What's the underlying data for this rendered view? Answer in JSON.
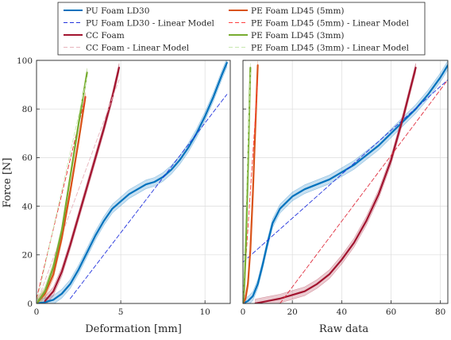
{
  "chart_data": [
    {
      "type": "line",
      "xlabel": "Deformation [mm]",
      "ylabel": "Force [N]",
      "xlim": [
        0,
        11.5
      ],
      "ylim": [
        0,
        100
      ],
      "xticks": [
        0,
        5,
        10
      ],
      "yticks": [
        0,
        20,
        40,
        60,
        80,
        100
      ],
      "grid": true,
      "series": [
        {
          "name": "PU Foam LD30",
          "color": "#0072bd",
          "style": "solid",
          "band": true,
          "x": [
            0,
            0.5,
            1,
            1.5,
            2,
            2.5,
            3,
            3.5,
            4,
            4.5,
            5,
            5.5,
            6,
            6.5,
            7,
            7.5,
            8,
            8.5,
            9,
            9.5,
            10,
            10.5,
            11,
            11.3
          ],
          "y": [
            0,
            0.5,
            1.5,
            4,
            8,
            14,
            21,
            28,
            34,
            39,
            42,
            45,
            47,
            49,
            50,
            52,
            55,
            59,
            64,
            70,
            77,
            85,
            94,
            99
          ]
        },
        {
          "name": "PU Foam LD30 - Linear Model",
          "color": "#2233dd",
          "style": "dashed",
          "x": [
            2,
            11.3
          ],
          "y": [
            2,
            86
          ]
        },
        {
          "name": "CC Foam",
          "color": "#a2142f",
          "style": "solid",
          "band": true,
          "x": [
            0.5,
            1,
            1.5,
            2,
            2.5,
            3,
            3.5,
            4,
            4.5,
            4.9
          ],
          "y": [
            1,
            5,
            13,
            24,
            36,
            48,
            60,
            72,
            85,
            97
          ]
        },
        {
          "name": "CC Foam - Linear Model",
          "color": "#e8b4bc",
          "style": "dashed",
          "x": [
            0,
            4.9
          ],
          "y": [
            0,
            92
          ]
        },
        {
          "name": "PE Foam LD45 (5mm)",
          "color": "#d95319",
          "style": "solid",
          "band": true,
          "x": [
            0,
            0.5,
            1,
            1.5,
            2,
            2.5,
            2.9
          ],
          "y": [
            0,
            4,
            12,
            27,
            46,
            67,
            85
          ]
        },
        {
          "name": "PE Foam LD45 (5mm) - Linear Model",
          "color": "#e83030",
          "style": "dashed",
          "x": [
            0,
            2.9
          ],
          "y": [
            2,
            85
          ]
        },
        {
          "name": "PE Foam LD45 (3mm)",
          "color": "#77ac30",
          "style": "solid",
          "band": true,
          "x": [
            0,
            0.5,
            1,
            1.5,
            2,
            2.5,
            3
          ],
          "y": [
            0,
            5,
            15,
            30,
            52,
            74,
            95
          ]
        },
        {
          "name": "PE Foam LD45 (3mm) - Linear Model",
          "color": "#c8e8b0",
          "style": "dashed",
          "x": [
            0,
            3
          ],
          "y": [
            0,
            93
          ]
        }
      ]
    },
    {
      "type": "line",
      "xlabel": "Raw data",
      "ylabel": "",
      "xlim": [
        0,
        83
      ],
      "ylim": [
        0,
        100
      ],
      "xticks": [
        0,
        20,
        40,
        60,
        80
      ],
      "yticks": [
        0,
        20,
        40,
        60,
        80,
        100
      ],
      "grid": true,
      "series": [
        {
          "name": "PU Foam LD30",
          "color": "#0072bd",
          "style": "solid",
          "band": true,
          "x": [
            0,
            2,
            4,
            6,
            8,
            10,
            12,
            15,
            20,
            25,
            30,
            35,
            40,
            45,
            50,
            55,
            60,
            65,
            70,
            75,
            80,
            83
          ],
          "y": [
            0,
            1,
            3,
            8,
            16,
            25,
            33,
            39,
            44,
            47,
            49,
            51,
            54,
            57,
            61,
            65,
            70,
            75,
            80,
            86,
            93,
            98
          ]
        },
        {
          "name": "PU Foam LD30 - Linear Model",
          "color": "#2233dd",
          "style": "dashed",
          "x": [
            0,
            83
          ],
          "y": [
            17,
            92
          ]
        },
        {
          "name": "CC Foam",
          "color": "#a2142f",
          "style": "solid",
          "band": true,
          "x": [
            5,
            10,
            15,
            20,
            25,
            30,
            35,
            40,
            45,
            50,
            55,
            60,
            65,
            70
          ],
          "y": [
            0,
            1,
            2,
            3.5,
            5,
            8,
            12,
            18,
            25,
            34,
            45,
            59,
            77,
            97
          ]
        },
        {
          "name": "CC Foam - Linear Model",
          "color": "#e03040",
          "style": "dashed",
          "x": [
            15,
            83
          ],
          "y": [
            0,
            92
          ]
        },
        {
          "name": "PE Foam LD45 (5mm)",
          "color": "#d95319",
          "style": "solid",
          "band": true,
          "x": [
            0,
            1,
            2,
            3,
            4,
            5,
            6
          ],
          "y": [
            0,
            2,
            8,
            22,
            45,
            72,
            98
          ]
        },
        {
          "name": "PE Foam LD45 (5mm) - Linear Model",
          "color": "#ff4040",
          "style": "dashed",
          "x": [
            0,
            6
          ],
          "y": [
            0,
            92
          ]
        },
        {
          "name": "PE Foam LD45 (3mm)",
          "color": "#77ac30",
          "style": "solid",
          "band": true,
          "x": [
            0,
            0.5,
            1,
            1.5,
            2,
            2.5,
            3
          ],
          "y": [
            0,
            6,
            18,
            35,
            55,
            76,
            97
          ]
        },
        {
          "name": "PE Foam LD45 (3mm) - Linear Model",
          "color": "#c8e8b0",
          "style": "dashed",
          "x": [
            0,
            3
          ],
          "y": [
            0,
            95
          ]
        }
      ]
    }
  ],
  "legend": [
    {
      "label": "PU Foam LD30",
      "color": "#0072bd",
      "style": "solid"
    },
    {
      "label": "PE Foam LD45 (5mm)",
      "color": "#d95319",
      "style": "solid"
    },
    {
      "label": "PU Foam LD30 - Linear Model",
      "color": "#2233dd",
      "style": "dashed"
    },
    {
      "label": "PE Foam LD45 (5mm) - Linear Model",
      "color": "#ff4040",
      "style": "dashed"
    },
    {
      "label": "CC Foam",
      "color": "#a2142f",
      "style": "solid"
    },
    {
      "label": "PE Foam LD45 (3mm)",
      "color": "#77ac30",
      "style": "solid"
    },
    {
      "label": "CC Foam - Linear Model",
      "color": "#e8b4bc",
      "style": "dashed"
    },
    {
      "label": "PE Foam LD45 (3mm) - Linear Model",
      "color": "#c8e8b0",
      "style": "dashed"
    }
  ]
}
